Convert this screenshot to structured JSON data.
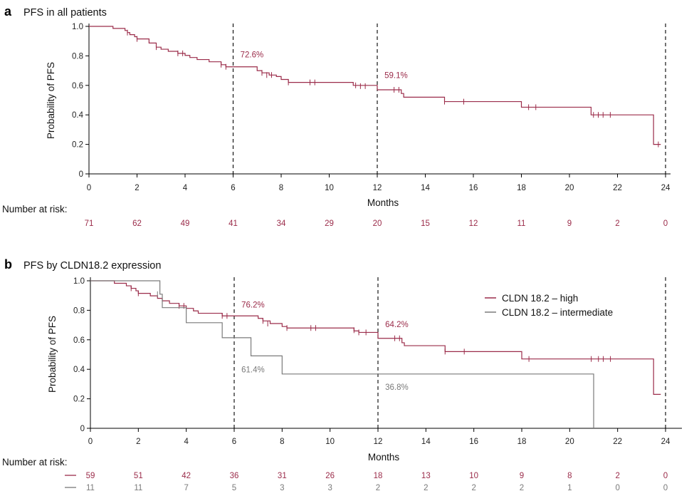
{
  "colors": {
    "high": "#9b2c4a",
    "intermediate": "#7a7a7a",
    "axis": "#000000"
  },
  "chart_data": [
    {
      "panel_letter": "a",
      "title": "PFS in all patients",
      "type": "line",
      "xlabel": "Months",
      "ylabel": "Probability of PFS",
      "xlim": [
        0,
        24
      ],
      "ylim": [
        0,
        1.0
      ],
      "x_ticks": [
        0,
        2,
        4,
        6,
        8,
        10,
        12,
        14,
        16,
        18,
        20,
        22,
        24
      ],
      "y_ticks": [
        0,
        0.2,
        0.4,
        0.6,
        0.8,
        1.0
      ],
      "y_tick_labels": [
        "0",
        "0.2",
        "0.4",
        "0.6",
        "0.8",
        "1.0"
      ],
      "vlines": [
        6,
        12,
        24
      ],
      "series": [
        {
          "name": "All patients",
          "color_key": "high",
          "steps": [
            [
              0,
              1.0
            ],
            [
              1.0,
              0.986
            ],
            [
              1.5,
              0.972
            ],
            [
              1.6,
              0.958
            ],
            [
              1.7,
              0.944
            ],
            [
              1.9,
              0.93
            ],
            [
              2.0,
              0.915
            ],
            [
              2.5,
              0.887
            ],
            [
              2.8,
              0.859
            ],
            [
              3.0,
              0.845
            ],
            [
              3.3,
              0.831
            ],
            [
              3.7,
              0.817
            ],
            [
              4.0,
              0.803
            ],
            [
              4.2,
              0.789
            ],
            [
              4.5,
              0.775
            ],
            [
              5.0,
              0.76
            ],
            [
              5.5,
              0.74
            ],
            [
              5.7,
              0.726
            ],
            [
              7.0,
              0.7
            ],
            [
              7.2,
              0.685
            ],
            [
              7.5,
              0.67
            ],
            [
              7.8,
              0.66
            ],
            [
              8.0,
              0.64
            ],
            [
              8.3,
              0.62
            ],
            [
              11.0,
              0.6
            ],
            [
              12.0,
              0.591
            ],
            [
              12.0,
              0.57
            ],
            [
              13.0,
              0.545
            ],
            [
              13.1,
              0.52
            ],
            [
              14.8,
              0.49
            ],
            [
              18.0,
              0.452
            ],
            [
              20.9,
              0.4
            ],
            [
              23.5,
              0.2
            ],
            [
              23.8,
              0.2
            ]
          ],
          "censors": [
            [
              1.6,
              0.958
            ],
            [
              2.0,
              0.915
            ],
            [
              2.8,
              0.859
            ],
            [
              3.7,
              0.817
            ],
            [
              3.9,
              0.817
            ],
            [
              5.5,
              0.74
            ],
            [
              5.7,
              0.726
            ],
            [
              7.2,
              0.685
            ],
            [
              7.4,
              0.67
            ],
            [
              7.6,
              0.67
            ],
            [
              8.3,
              0.62
            ],
            [
              9.2,
              0.62
            ],
            [
              9.4,
              0.62
            ],
            [
              11.1,
              0.6
            ],
            [
              11.3,
              0.595
            ],
            [
              11.5,
              0.595
            ],
            [
              12.7,
              0.57
            ],
            [
              12.9,
              0.57
            ],
            [
              14.8,
              0.49
            ],
            [
              15.6,
              0.49
            ],
            [
              18.3,
              0.452
            ],
            [
              18.6,
              0.452
            ],
            [
              21.0,
              0.4
            ],
            [
              21.2,
              0.4
            ],
            [
              21.4,
              0.4
            ],
            [
              21.7,
              0.4
            ],
            [
              23.7,
              0.2
            ]
          ]
        }
      ],
      "annotations": [
        {
          "text": "72.6%",
          "x": 6.3,
          "y": 0.79,
          "color_key": "high"
        },
        {
          "text": "59.1%",
          "x": 12.3,
          "y": 0.65,
          "color_key": "high"
        }
      ],
      "risk_label": "Number at risk:",
      "risk_table": [
        {
          "color_key": "high",
          "show_swatch": false,
          "values": [
            "71",
            "62",
            "49",
            "41",
            "34",
            "29",
            "20",
            "15",
            "12",
            "11",
            "9",
            "2",
            "0"
          ]
        }
      ]
    },
    {
      "panel_letter": "b",
      "title": "PFS by CLDN18.2 expression",
      "type": "line",
      "xlabel": "Months",
      "ylabel": "Probability of PFS",
      "xlim": [
        0,
        24
      ],
      "ylim": [
        0,
        1.0
      ],
      "x_ticks": [
        0,
        2,
        4,
        6,
        8,
        10,
        12,
        14,
        16,
        18,
        20,
        22,
        24
      ],
      "y_ticks": [
        0,
        0.2,
        0.4,
        0.6,
        0.8,
        1.0
      ],
      "y_tick_labels": [
        "0",
        "0.2",
        "0.4",
        "0.6",
        "0.8",
        "1.0"
      ],
      "vlines": [
        6,
        12,
        24
      ],
      "legend": [
        {
          "label": "CLDN 18.2 – high",
          "color_key": "high"
        },
        {
          "label": "CLDN 18.2 – intermediate",
          "color_key": "intermediate"
        }
      ],
      "series": [
        {
          "name": "CLDN 18.2 – high",
          "color_key": "high",
          "steps": [
            [
              0,
              1.0
            ],
            [
              1.0,
              0.983
            ],
            [
              1.5,
              0.966
            ],
            [
              1.7,
              0.949
            ],
            [
              1.9,
              0.932
            ],
            [
              2.0,
              0.915
            ],
            [
              2.5,
              0.898
            ],
            [
              2.8,
              0.881
            ],
            [
              3.0,
              0.864
            ],
            [
              3.3,
              0.847
            ],
            [
              3.7,
              0.83
            ],
            [
              4.0,
              0.813
            ],
            [
              4.3,
              0.796
            ],
            [
              4.5,
              0.78
            ],
            [
              5.5,
              0.762
            ],
            [
              7.0,
              0.745
            ],
            [
              7.2,
              0.728
            ],
            [
              7.5,
              0.71
            ],
            [
              8.0,
              0.69
            ],
            [
              8.2,
              0.68
            ],
            [
              11.0,
              0.66
            ],
            [
              11.2,
              0.65
            ],
            [
              12.0,
              0.642
            ],
            [
              12.0,
              0.61
            ],
            [
              13.0,
              0.58
            ],
            [
              13.1,
              0.56
            ],
            [
              14.8,
              0.52
            ],
            [
              18.0,
              0.47
            ],
            [
              23.5,
              0.23
            ],
            [
              23.8,
              0.23
            ]
          ],
          "censors": [
            [
              1.7,
              0.949
            ],
            [
              2.0,
              0.915
            ],
            [
              3.7,
              0.83
            ],
            [
              3.9,
              0.83
            ],
            [
              5.5,
              0.762
            ],
            [
              5.7,
              0.762
            ],
            [
              7.2,
              0.728
            ],
            [
              7.4,
              0.71
            ],
            [
              8.2,
              0.68
            ],
            [
              9.2,
              0.68
            ],
            [
              9.4,
              0.68
            ],
            [
              11.0,
              0.665
            ],
            [
              11.2,
              0.65
            ],
            [
              11.5,
              0.65
            ],
            [
              12.7,
              0.61
            ],
            [
              12.9,
              0.61
            ],
            [
              14.8,
              0.52
            ],
            [
              15.6,
              0.52
            ],
            [
              18.3,
              0.47
            ],
            [
              20.9,
              0.47
            ],
            [
              21.2,
              0.47
            ],
            [
              21.4,
              0.47
            ],
            [
              21.7,
              0.47
            ]
          ]
        },
        {
          "name": "CLDN 18.2 – intermediate",
          "color_key": "intermediate",
          "steps": [
            [
              0,
              1.0
            ],
            [
              2.9,
              0.909
            ],
            [
              3.0,
              0.818
            ],
            [
              4.0,
              0.716
            ],
            [
              5.5,
              0.614
            ],
            [
              6.7,
              0.491
            ],
            [
              8.0,
              0.368
            ],
            [
              21.0,
              0
            ],
            [
              21.0,
              0
            ]
          ],
          "censors": [
            [
              2.8,
              0.909
            ]
          ]
        }
      ],
      "annotations": [
        {
          "text": "76.2%",
          "x": 6.3,
          "y": 0.82,
          "color_key": "high"
        },
        {
          "text": "64.2%",
          "x": 12.3,
          "y": 0.685,
          "color_key": "high"
        },
        {
          "text": "61.4%",
          "x": 6.3,
          "y": 0.38,
          "color_key": "intermediate"
        },
        {
          "text": "36.8%",
          "x": 12.3,
          "y": 0.26,
          "color_key": "intermediate"
        }
      ],
      "risk_label": "Number at risk:",
      "risk_table": [
        {
          "color_key": "high",
          "show_swatch": true,
          "values": [
            "59",
            "51",
            "42",
            "36",
            "31",
            "26",
            "18",
            "13",
            "10",
            "9",
            "8",
            "2",
            "0"
          ]
        },
        {
          "color_key": "intermediate",
          "show_swatch": true,
          "values": [
            "11",
            "11",
            "7",
            "5",
            "3",
            "3",
            "2",
            "2",
            "2",
            "2",
            "1",
            "0",
            "0"
          ]
        }
      ]
    }
  ]
}
